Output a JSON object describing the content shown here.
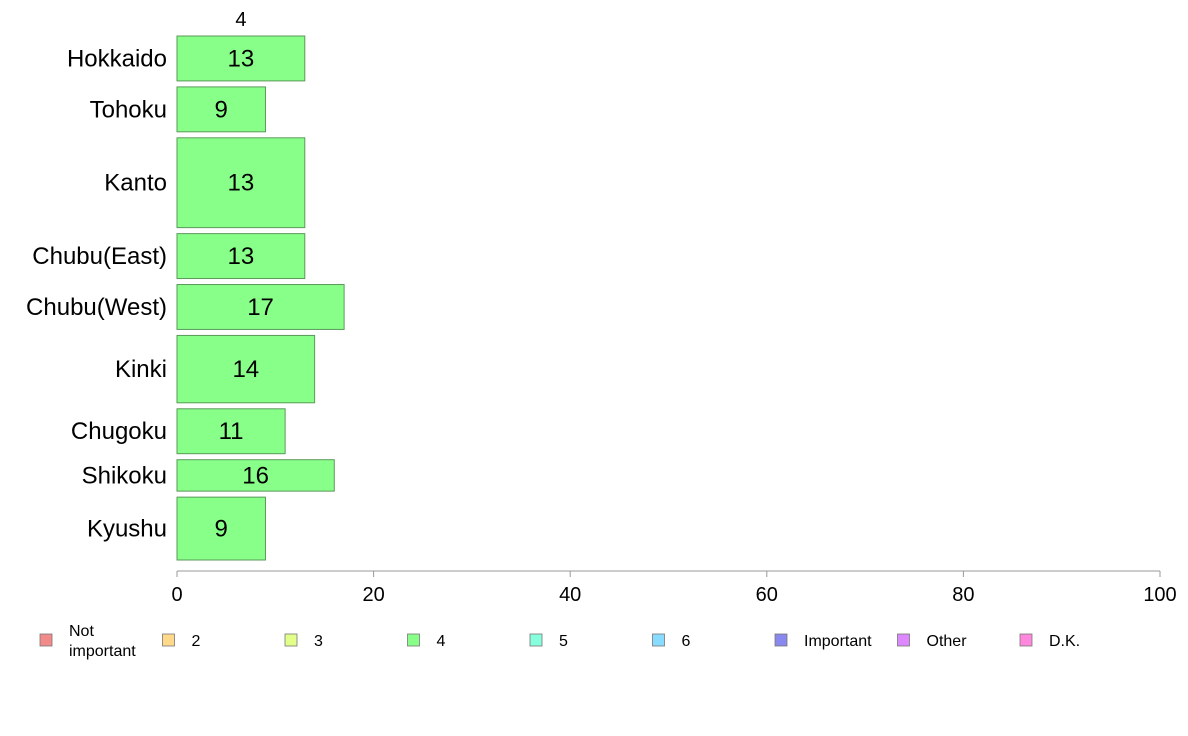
{
  "chart_data": {
    "type": "bar",
    "orientation": "horizontal",
    "header_label": "4",
    "categories": [
      "Hokkaido",
      "Tohoku",
      "Kanto",
      "Chubu(East)",
      "Chubu(West)",
      "Kinki",
      "Chugoku",
      "Shikoku",
      "Kyushu"
    ],
    "relative_widths": [
      1,
      1,
      2,
      1,
      1,
      1.5,
      1,
      0.7,
      1.4
    ],
    "series": [
      {
        "name": "4",
        "values": [
          13,
          9,
          13,
          13,
          17,
          14,
          11,
          16,
          9
        ],
        "color": "#88ff88"
      }
    ],
    "xlim": [
      0,
      100
    ],
    "xticks": [
      0,
      20,
      40,
      60,
      80,
      100
    ],
    "grid": false,
    "legend_position": "bottom",
    "legend": [
      {
        "label": "Not\nimportant",
        "color": "#f28a8a"
      },
      {
        "label": "2",
        "color": "#ffd98a"
      },
      {
        "label": "3",
        "color": "#e2ff8a"
      },
      {
        "label": "4",
        "color": "#88ff88"
      },
      {
        "label": "5",
        "color": "#88ffdd"
      },
      {
        "label": "6",
        "color": "#88dcff"
      },
      {
        "label": "Important",
        "color": "#8888ee"
      },
      {
        "label": "Other",
        "color": "#dd88ff"
      },
      {
        "label": "D.K.",
        "color": "#ff88dd"
      }
    ]
  }
}
